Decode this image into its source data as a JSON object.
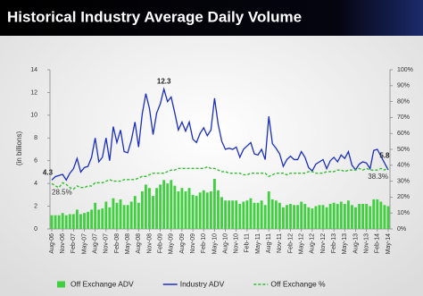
{
  "chart_data": {
    "type": "combo",
    "title": "Historical Industry Average Daily Volume",
    "y_label": "(in billions)",
    "categories": [
      "Aug-06",
      null,
      null,
      "Nov-06",
      null,
      null,
      "Feb-07",
      null,
      null,
      "May-07",
      null,
      null,
      "Aug-07",
      null,
      null,
      "Nov-07",
      null,
      null,
      "Feb-08",
      null,
      null,
      "May-08",
      null,
      null,
      "Aug-08",
      null,
      null,
      "Nov-08",
      null,
      null,
      "Feb-09",
      null,
      null,
      "May-09",
      null,
      null,
      "Aug-09",
      null,
      null,
      "Nov-09",
      null,
      null,
      "Feb-10",
      null,
      null,
      "May-10",
      null,
      null,
      "Aug-10",
      null,
      null,
      "Nov-10",
      null,
      null,
      "Feb-11",
      null,
      null,
      "May-11",
      null,
      null,
      "Aug-11",
      null,
      null,
      "Nov-11",
      null,
      null,
      "Feb-12",
      null,
      null,
      "May-12",
      null,
      null,
      "Aug-12",
      null,
      null,
      "Nov-12",
      null,
      null,
      "Feb-13",
      null,
      null,
      "May-13",
      null,
      null,
      "Aug-13",
      null,
      null,
      "Nov-13",
      null,
      null,
      "Feb-14",
      null,
      null,
      "May-14"
    ],
    "ylim": [
      0,
      14
    ],
    "yticks": [
      0,
      2,
      4,
      6,
      8,
      10,
      12,
      14
    ],
    "y2lim": [
      0,
      100
    ],
    "y2ticks": [
      {
        "value": 0,
        "label": "0%"
      },
      {
        "value": 10,
        "label": "10%"
      },
      {
        "value": 20,
        "label": "20%"
      },
      {
        "value": 30,
        "label": "30%"
      },
      {
        "value": 40,
        "label": "40%"
      },
      {
        "value": 50,
        "label": "50%"
      },
      {
        "value": 60,
        "label": "60%"
      },
      {
        "value": 70,
        "label": "70%"
      },
      {
        "value": 80,
        "label": "80%"
      },
      {
        "value": 90,
        "label": "90%"
      },
      {
        "value": 100,
        "label": "100%"
      }
    ],
    "grid": false,
    "legend": "bottom",
    "series": [
      {
        "name": "Off Exchange ADV",
        "type": "bar",
        "color": "#3fcf3f",
        "values": [
          1.2,
          1.2,
          1.2,
          1.4,
          1.2,
          1.3,
          1.3,
          1.7,
          1.3,
          1.4,
          1.5,
          1.7,
          2.3,
          1.7,
          1.8,
          2.4,
          1.9,
          2.7,
          2.3,
          2.6,
          2.1,
          2.1,
          2.4,
          2.9,
          2.3,
          3.3,
          3.9,
          3.6,
          2.9,
          3.6,
          3.9,
          4.3,
          4.0,
          4.3,
          3.8,
          3.3,
          3.6,
          3.3,
          3.6,
          3.0,
          2.9,
          3.2,
          3.4,
          3.2,
          3.3,
          4.4,
          3.4,
          2.8,
          2.5,
          2.5,
          2.5,
          2.5,
          2.2,
          2.4,
          2.5,
          2.7,
          2.3,
          2.3,
          2.5,
          2.1,
          3.3,
          2.6,
          2.5,
          2.3,
          1.9,
          2.1,
          2.2,
          2.1,
          2.1,
          2.4,
          2.2,
          1.9,
          1.8,
          2.0,
          2.1,
          2.1,
          1.9,
          2.2,
          2.3,
          2.2,
          2.4,
          2.2,
          2.5,
          2.1,
          1.9,
          2.2,
          2.2,
          2.2,
          2.0,
          2.6,
          2.6,
          2.4,
          2.1,
          2.0
        ]
      },
      {
        "name": "Industry ADV",
        "type": "line",
        "color": "#1a2ec0",
        "dashed": false,
        "values": [
          4.3,
          4.6,
          4.7,
          4.8,
          4.3,
          4.9,
          5.3,
          6.2,
          5.0,
          5.4,
          5.5,
          6.3,
          8.0,
          5.9,
          6.3,
          8.0,
          6.0,
          9.0,
          7.6,
          8.7,
          6.8,
          6.7,
          7.8,
          9.4,
          7.2,
          10.1,
          11.9,
          10.6,
          8.3,
          10.2,
          11.0,
          12.3,
          11.2,
          11.6,
          10.2,
          8.7,
          9.4,
          8.6,
          9.4,
          7.9,
          7.6,
          8.4,
          8.9,
          8.2,
          8.7,
          11.5,
          9.2,
          7.7,
          7.0,
          7.1,
          7.0,
          7.2,
          6.3,
          7.0,
          7.3,
          7.6,
          6.6,
          6.5,
          7.0,
          6.1,
          9.9,
          7.5,
          7.1,
          6.6,
          5.5,
          6.1,
          6.4,
          6.1,
          6.1,
          6.8,
          6.3,
          5.4,
          5.1,
          5.7,
          5.9,
          6.1,
          5.3,
          6.0,
          6.3,
          5.9,
          6.5,
          6.2,
          6.8,
          5.6,
          5.2,
          5.7,
          5.9,
          5.8,
          5.3,
          6.9,
          7.0,
          6.4,
          5.8,
          5.2
        ],
        "value_labels": [
          "4.3",
          null,
          null,
          null,
          null,
          null,
          null,
          null,
          null,
          null,
          null,
          null,
          null,
          null,
          null,
          null,
          null,
          null,
          null,
          null,
          null,
          null,
          null,
          null,
          null,
          null,
          null,
          null,
          null,
          null,
          null,
          "12.3",
          null,
          null,
          null,
          null,
          null,
          null,
          null,
          null,
          null,
          null,
          null,
          null,
          null,
          null,
          null,
          null,
          null,
          null,
          null,
          null,
          null,
          null,
          null,
          null,
          null,
          null,
          null,
          null,
          null,
          null,
          null,
          null,
          null,
          null,
          null,
          null,
          null,
          null,
          null,
          null,
          null,
          null,
          null,
          null,
          null,
          null,
          null,
          null,
          null,
          null,
          null,
          null,
          null,
          null,
          null,
          null,
          null,
          null,
          null,
          null,
          "5.8",
          null
        ]
      },
      {
        "name": "Off Exchange %",
        "type": "line",
        "axis": "y2",
        "color": "#2fbf2f",
        "dashed": true,
        "values": [
          28.5,
          27,
          26,
          29,
          28,
          26,
          25,
          27,
          26,
          26,
          27,
          27,
          29,
          29,
          29,
          30,
          31,
          30,
          30,
          30,
          31,
          31,
          31,
          31,
          32,
          33,
          33,
          34,
          35,
          35,
          35,
          35,
          36,
          37,
          37,
          38,
          38,
          38,
          38,
          38,
          38,
          38,
          38,
          39,
          38,
          38,
          37,
          36,
          36,
          35,
          35,
          35,
          35,
          34,
          34,
          35,
          35,
          35,
          35,
          35,
          33,
          34,
          35,
          35,
          35,
          34,
          35,
          35,
          35,
          35,
          35,
          36,
          36,
          35,
          35,
          35,
          36,
          36,
          36,
          37,
          37,
          36,
          37,
          37,
          37,
          38,
          37,
          38,
          37,
          37,
          37,
          38,
          37,
          38.3
        ],
        "value_labels": [
          "28.5%",
          null,
          null,
          null,
          null,
          null,
          null,
          null,
          null,
          null,
          null,
          null,
          null,
          null,
          null,
          null,
          null,
          null,
          null,
          null,
          null,
          null,
          null,
          null,
          null,
          null,
          null,
          null,
          null,
          null,
          null,
          null,
          null,
          null,
          null,
          null,
          null,
          null,
          null,
          null,
          null,
          null,
          null,
          null,
          null,
          null,
          null,
          null,
          null,
          null,
          null,
          null,
          null,
          null,
          null,
          null,
          null,
          null,
          null,
          null,
          null,
          null,
          null,
          null,
          null,
          null,
          null,
          null,
          null,
          null,
          null,
          null,
          null,
          null,
          null,
          null,
          null,
          null,
          null,
          null,
          null,
          null,
          null,
          null,
          null,
          null,
          null,
          null,
          null,
          null,
          null,
          null,
          null,
          "38.3%"
        ]
      }
    ]
  }
}
